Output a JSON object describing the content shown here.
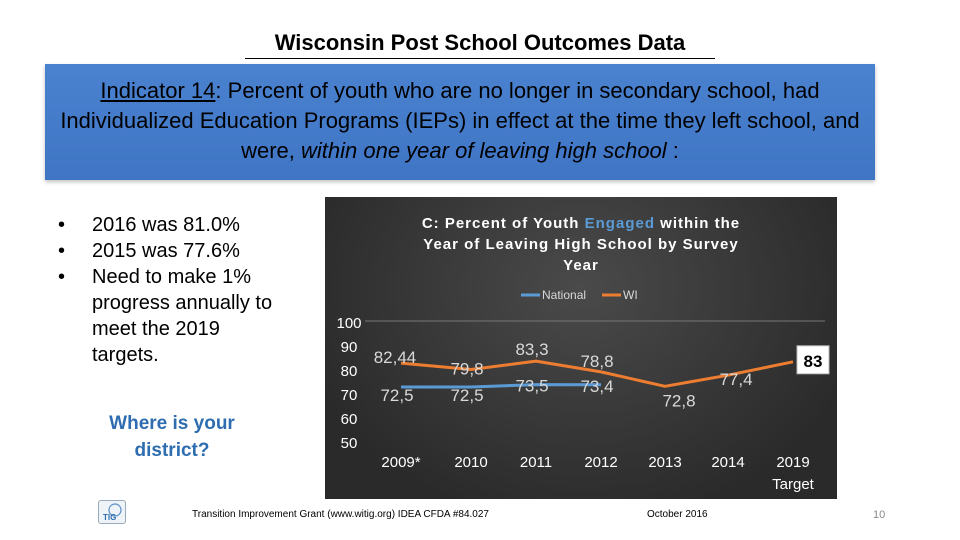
{
  "slide": {
    "title": "Wisconsin Post School Outcomes Data",
    "indicator": {
      "lead": "Indicator 14",
      "lead_suffix": ":",
      "text": "Percent of youth who are no longer in secondary school, had Individualized Education Programs (IEPs) in effect at the time they left school, and were,",
      "emphasis": "within one year of leaving high school",
      "tail": " :"
    },
    "bullets": [
      "2016 was 81.0%",
      "2015 was 77.6%",
      "Need to make 1% progress annually to meet the 2019 targets."
    ],
    "district_prompt": "Where is your district?",
    "footer": {
      "logo": "TIG",
      "source": "Transition Improvement Grant (www.witig.org) IDEA CFDA #84.027",
      "date": "October 2016",
      "page_number": "10"
    }
  },
  "colors": {
    "banner": "#4a82d0",
    "national": "#5b9bd5",
    "wi": "#ed7d31",
    "district_text": "#2e6db0"
  },
  "chart_data": {
    "type": "line",
    "title_pre": "C:  Percent of Youth ",
    "title_highlight": "Engaged",
    "title_post": " within the Year of Leaving High School by Survey Year",
    "categories": [
      "2009*",
      "2010",
      "2011",
      "2012",
      "2013",
      "2014",
      "2019 Target"
    ],
    "series": [
      {
        "name": "National",
        "values": [
          72.5,
          72.5,
          73.5,
          73.4,
          null,
          null,
          null
        ]
      },
      {
        "name": "WI",
        "values": [
          82.44,
          79.8,
          83.3,
          78.8,
          72.8,
          77.4,
          83
        ]
      }
    ],
    "labels": {
      "national": [
        "72,5",
        "72,5",
        "73,5",
        "73,4"
      ],
      "wi": [
        "82,44",
        "79,8",
        "83,3",
        "78,8",
        "72,8",
        "77,4",
        "83"
      ]
    },
    "yticks": [
      "100",
      "90",
      "80",
      "70",
      "60",
      "50"
    ],
    "ylim": [
      50,
      100
    ],
    "legend": "top"
  }
}
